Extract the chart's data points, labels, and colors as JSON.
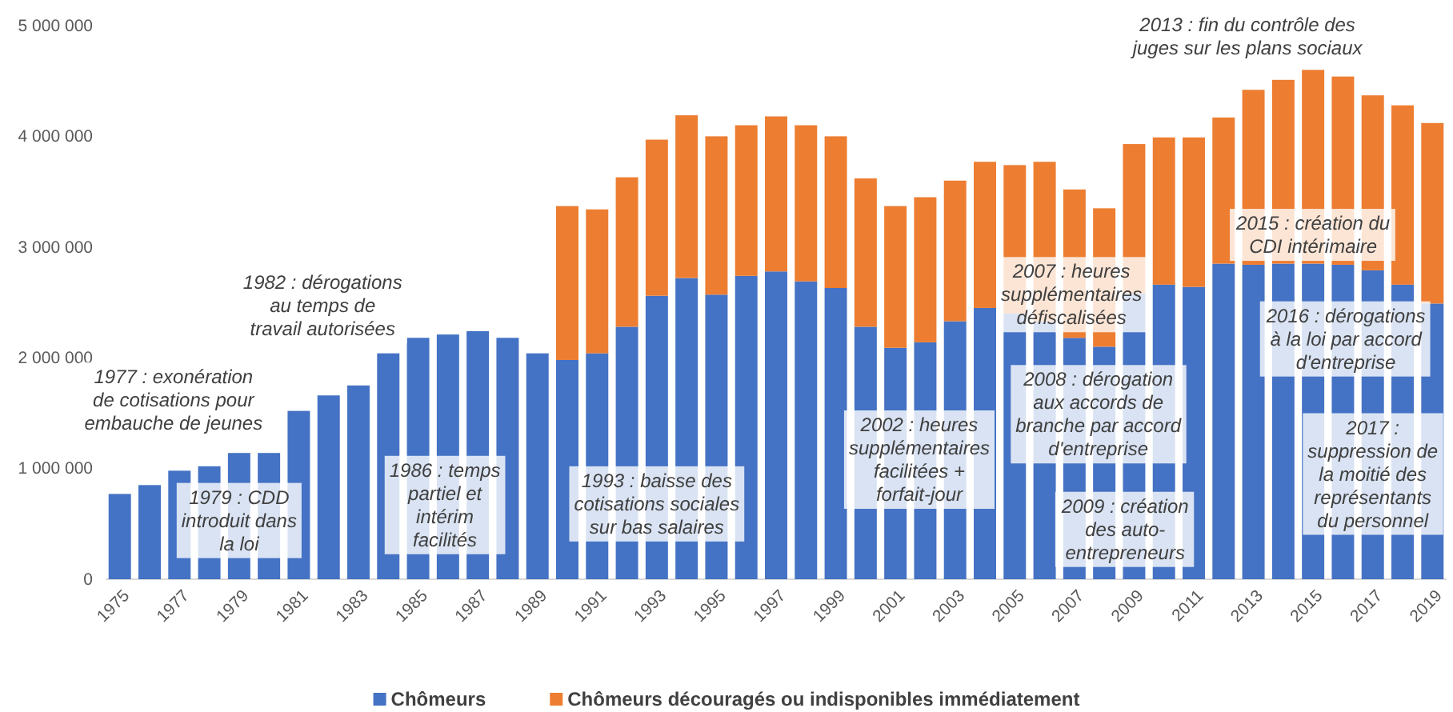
{
  "chart_data": {
    "type": "bar",
    "stacked": true,
    "legend": "bottom",
    "grid": false,
    "categories": [
      "1975",
      null,
      "1977",
      null,
      "1979",
      null,
      "1981",
      null,
      "1983",
      null,
      "1985",
      null,
      "1987",
      null,
      "1989",
      null,
      "1991",
      null,
      "1993",
      null,
      "1995",
      null,
      "1997",
      null,
      "1999",
      null,
      "2001",
      null,
      "2003",
      null,
      "2005",
      null,
      "2007",
      null,
      "2009",
      null,
      "2011",
      null,
      "2013",
      null,
      "2015",
      null,
      "2017",
      null,
      "2019"
    ],
    "series": [
      {
        "name": "Chômeurs",
        "color": "#4472c4",
        "values": [
          770000,
          850000,
          980000,
          1020000,
          1140000,
          1140000,
          1520000,
          1660000,
          1750000,
          2040000,
          2180000,
          2210000,
          2240000,
          2180000,
          2040000,
          1980000,
          2040000,
          2280000,
          2560000,
          2720000,
          2570000,
          2740000,
          2780000,
          2690000,
          2630000,
          2280000,
          2090000,
          2140000,
          2330000,
          2450000,
          2400000,
          2330000,
          2180000,
          2100000,
          2580000,
          2660000,
          2640000,
          2850000,
          2840000,
          2850000,
          2850000,
          2840000,
          2790000,
          2660000,
          2490000
        ]
      },
      {
        "name": "Chômeurs découragés ou indisponibles immédiatement",
        "color": "#ed7d31",
        "values": [
          null,
          null,
          null,
          null,
          null,
          null,
          null,
          null,
          null,
          null,
          null,
          null,
          null,
          null,
          null,
          1390000,
          1300000,
          1350000,
          1410000,
          1470000,
          1430000,
          1360000,
          1400000,
          1410000,
          1370000,
          1340000,
          1280000,
          1310000,
          1270000,
          1320000,
          1340000,
          1440000,
          1340000,
          1250000,
          1350000,
          1330000,
          1350000,
          1320000,
          1580000,
          1660000,
          1750000,
          1700000,
          1580000,
          1620000,
          1630000
        ]
      }
    ],
    "ylim": [
      0,
      5000000
    ],
    "yticks": [
      {
        "value": 0,
        "label": "0"
      },
      {
        "value": 1000000,
        "label": "1 000 000"
      },
      {
        "value": 2000000,
        "label": "2 000 000"
      },
      {
        "value": 3000000,
        "label": "3 000 000"
      },
      {
        "value": 4000000,
        "label": "4 000 000"
      },
      {
        "value": 5000000,
        "label": "5 000 000"
      }
    ],
    "annotations": [
      "1977 : exonération\nde cotisations pour\nembauche de jeunes",
      "1979 : CDD\nintroduit dans\nla loi",
      "1982 : dérogations\nau temps de\ntravail autorisées",
      "1986 : temps\npartiel et\nintérim\nfacilités",
      "1993 : baisse des\ncotisations sociales\nsur bas salaires",
      "2002 : heures\nsupplémentaires\nfacilitées +\nforfait-jour",
      "2007 : heures\nsupplémentaires\ndéfiscalisées",
      "2008 : dérogation\naux accords de\nbranche par accord\nd'entreprise",
      "2009 : création\ndes auto-\nentrepreneurs",
      "2013 : fin du contrôle des\njuges sur les plans sociaux",
      "2015 : création du\nCDI intérimaire",
      "2016 : dérogations\nà la loi par accord\nd'entreprise",
      "2017 :\nsuppression de\nla moitié des\nreprésentants\ndu personnel"
    ]
  }
}
